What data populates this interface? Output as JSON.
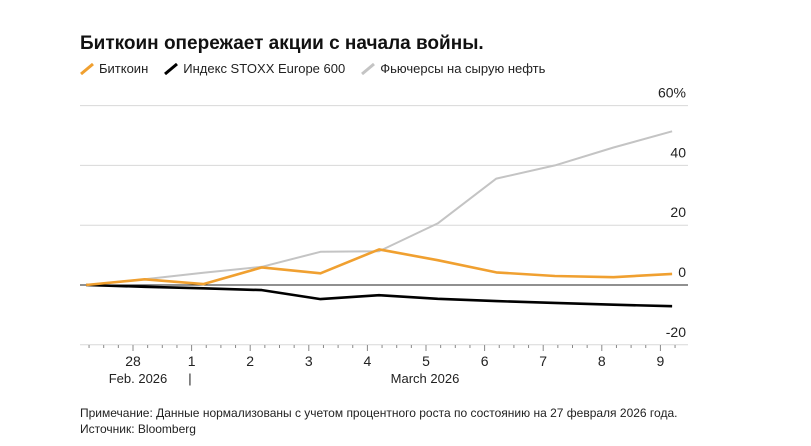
{
  "chart_data": {
    "type": "line",
    "title": "Биткоин опережает акции с начала войны.",
    "x": [
      "2026-02-27",
      "2026-02-28",
      "2026-03-01",
      "2026-03-02",
      "2026-03-03",
      "2026-03-04",
      "2026-03-05",
      "2026-03-06",
      "2026-03-07",
      "2026-03-08",
      "2026-03-09"
    ],
    "series": [
      {
        "name": "Биткоин",
        "color": "#f0a030",
        "values": [
          0,
          1.9,
          0.3,
          5.9,
          3.9,
          11.9,
          8.3,
          4.2,
          3.0,
          2.6,
          3.7
        ]
      },
      {
        "name": "Индекс STOXX Europe 600",
        "color": "#000000",
        "values": [
          0,
          -0.6,
          -1.1,
          -1.7,
          -4.7,
          -3.4,
          -4.6,
          -5.4,
          -6.0,
          -6.6,
          -7.1
        ]
      },
      {
        "name": "Фьючерсы на сырую нефть",
        "color": "#c4c4c4",
        "values": [
          0,
          1.9,
          4.1,
          6.1,
          11.1,
          11.3,
          20.6,
          35.6,
          40.0,
          46.0,
          51.4
        ]
      }
    ],
    "ylim": [
      -20,
      60
    ],
    "yticks": [
      "60%",
      "40",
      "20",
      "0",
      "-20"
    ],
    "ytick_values": [
      60,
      40,
      20,
      0,
      -20
    ],
    "xticks": [
      "28",
      "1",
      "2",
      "3",
      "4",
      "5",
      "6",
      "7",
      "8",
      "9"
    ],
    "month_labels": [
      "Feb. 2026",
      "|",
      "March 2026"
    ],
    "grid": true,
    "legend": "top-left"
  },
  "footer": {
    "note": "Примечание: Данные нормализованы с учетом процентного роста по состоянию на 27 февраля 2026 года.",
    "source": "Источник: Bloomberg"
  }
}
